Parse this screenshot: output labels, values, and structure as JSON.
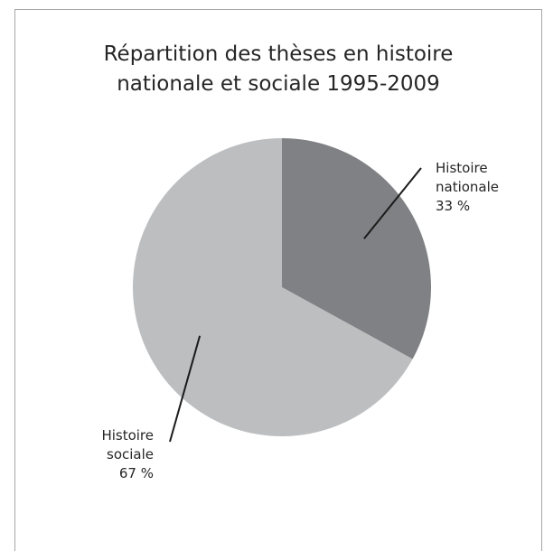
{
  "chart_data": {
    "type": "pie",
    "title": "Répartition des thèses en histoire nationale et sociale 1995-2009",
    "title_lines": [
      "Répartition des thèses en histoire",
      "nationale et sociale 1995-2009"
    ],
    "slices": [
      {
        "label_lines": [
          "Histoire",
          "nationale"
        ],
        "value": 33,
        "value_label": "33 %",
        "color": "#808184"
      },
      {
        "label_lines": [
          "Histoire",
          "sociale"
        ],
        "value": 67,
        "value_label": "67 %",
        "color": "#bcbec0"
      }
    ],
    "legend": "none",
    "grid": false
  }
}
